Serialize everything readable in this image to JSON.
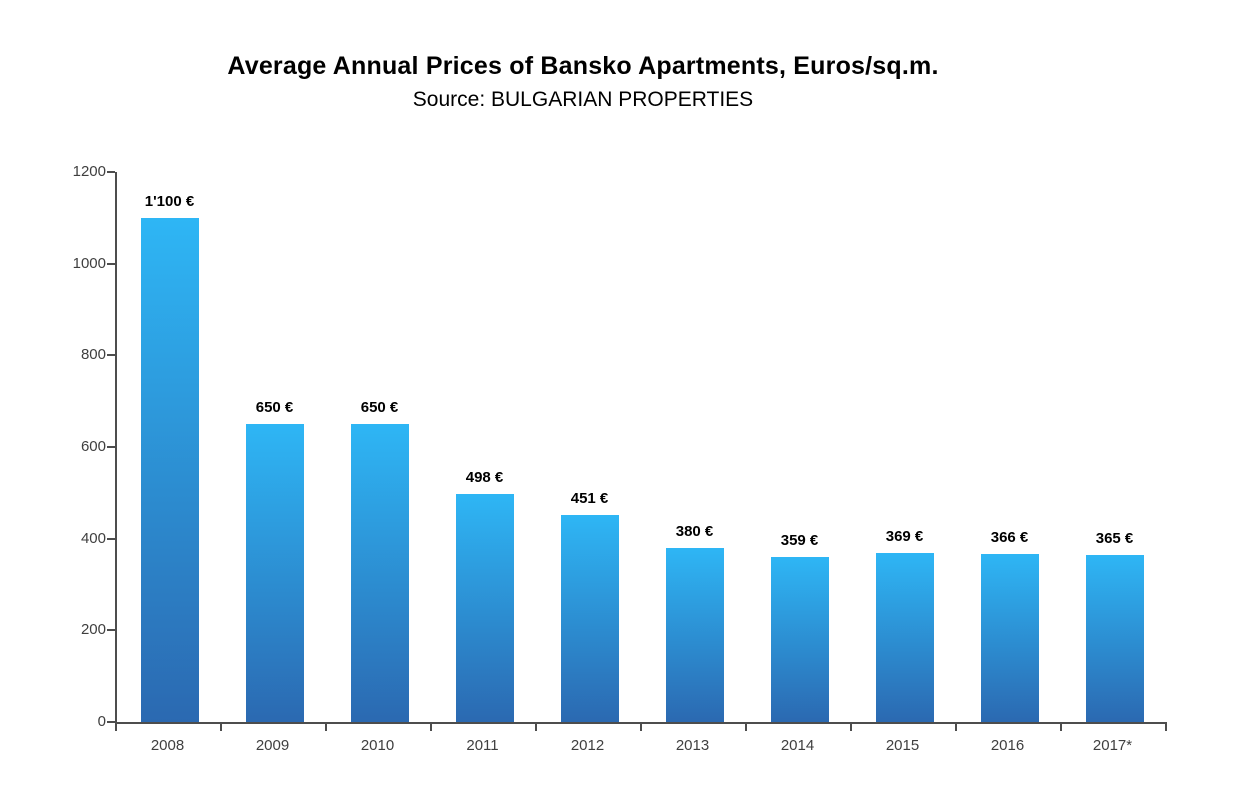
{
  "header": {
    "title": "Average Annual Prices of Bansko Apartments, Euros/sq.m.",
    "subtitle": "Source: BULGARIAN PROPERTIES"
  },
  "chart_data": {
    "type": "bar",
    "title": "Average Annual Prices of Bansko Apartments, Euros/sq.m.",
    "subtitle": "Source: BULGARIAN PROPERTIES",
    "categories": [
      "2008",
      "2009",
      "2010",
      "2011",
      "2012",
      "2013",
      "2014",
      "2015",
      "2016",
      "2017*"
    ],
    "values": [
      1100,
      650,
      650,
      498,
      451,
      380,
      359,
      369,
      366,
      365
    ],
    "data_labels": [
      "1'100 €",
      "650 €",
      "650 €",
      "498 €",
      "451 €",
      "380 €",
      "359 €",
      "369 €",
      "366 €",
      "365 €"
    ],
    "xlabel": "",
    "ylabel": "",
    "ylim": [
      0,
      1200
    ],
    "yticks": [
      0,
      200,
      400,
      600,
      800,
      1000,
      1200
    ],
    "grid": false,
    "legend": "none",
    "colors": {
      "bar_top": "#2eb6f5",
      "bar_bottom": "#2b69b1",
      "axis": "#4d4d4d",
      "data_label_text": "#000000",
      "tick_text": "#3f3f3f"
    }
  }
}
